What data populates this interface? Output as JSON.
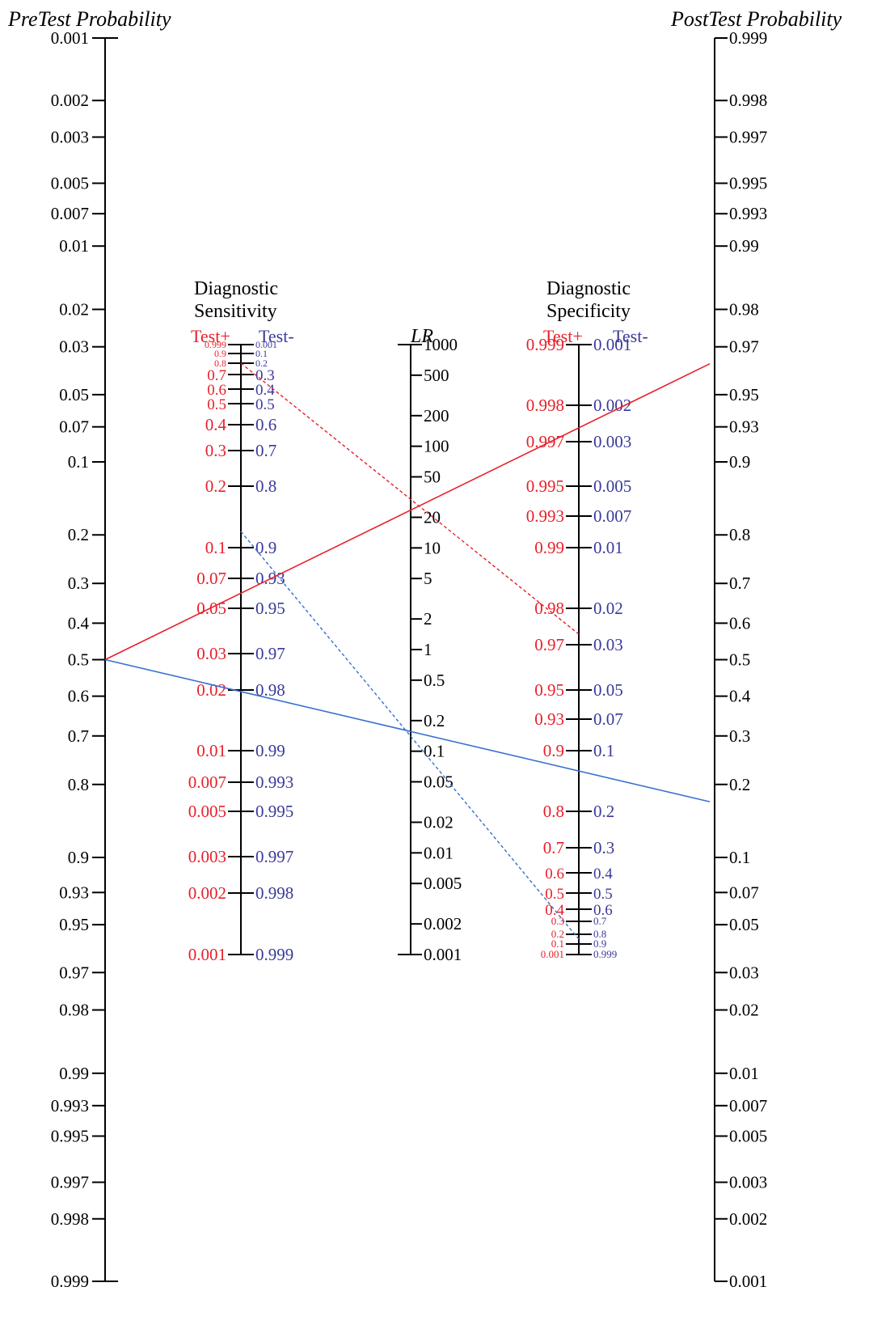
{
  "titles": {
    "pretest": "PreTest Probability",
    "posttest": "PostTest Probability",
    "lr": "LR",
    "sensitivity": [
      "Diagnostic",
      "Sensitivity"
    ],
    "specificity": [
      "Diagnostic",
      "Specificity"
    ],
    "test_pos": "Test+",
    "test_neg": "Test-"
  },
  "colors": {
    "axis": "#000000",
    "red": "#e8202a",
    "blue": "#3a3a9a",
    "line_red": "#e8202a",
    "line_blue": "#3a6fd0"
  },
  "pretest_ticks": [
    "0.001",
    "0.002",
    "0.003",
    "0.005",
    "0.007",
    "0.01",
    "0.02",
    "0.03",
    "0.05",
    "0.07",
    "0.1",
    "0.2",
    "0.3",
    "0.4",
    "0.5",
    "0.6",
    "0.7",
    "0.8",
    "0.9",
    "0.93",
    "0.95",
    "0.97",
    "0.98",
    "0.99",
    "0.993",
    "0.995",
    "0.997",
    "0.998",
    "0.999"
  ],
  "posttest_ticks": [
    "0.999",
    "0.998",
    "0.997",
    "0.995",
    "0.993",
    "0.99",
    "0.98",
    "0.97",
    "0.95",
    "0.93",
    "0.9",
    "0.8",
    "0.7",
    "0.6",
    "0.5",
    "0.4",
    "0.3",
    "0.2",
    "0.1",
    "0.07",
    "0.05",
    "0.03",
    "0.02",
    "0.01",
    "0.007",
    "0.005",
    "0.003",
    "0.002",
    "0.001"
  ],
  "lr_ticks": [
    "1000",
    "500",
    "200",
    "100",
    "50",
    "20",
    "10",
    "5",
    "2",
    "1",
    "0.5",
    "0.2",
    "0.1",
    "0.05",
    "0.02",
    "0.01",
    "0.005",
    "0.002",
    "0.001"
  ],
  "sensitivity_ticks": [
    {
      "pos": "0.999",
      "neg": "0.001"
    },
    {
      "pos": "0.9",
      "neg": "0.1"
    },
    {
      "pos": "0.8",
      "neg": "0.2"
    },
    {
      "pos": "0.7",
      "neg": "0.3"
    },
    {
      "pos": "0.6",
      "neg": "0.4"
    },
    {
      "pos": "0.5",
      "neg": "0.5"
    },
    {
      "pos": "0.4",
      "neg": "0.6"
    },
    {
      "pos": "0.3",
      "neg": "0.7"
    },
    {
      "pos": "0.2",
      "neg": "0.8"
    },
    {
      "pos": "0.1",
      "neg": "0.9"
    },
    {
      "pos": "0.07",
      "neg": "0.93"
    },
    {
      "pos": "0.05",
      "neg": "0.95"
    },
    {
      "pos": "0.03",
      "neg": "0.97"
    },
    {
      "pos": "0.02",
      "neg": "0.98"
    },
    {
      "pos": "0.01",
      "neg": "0.99"
    },
    {
      "pos": "0.007",
      "neg": "0.993"
    },
    {
      "pos": "0.005",
      "neg": "0.995"
    },
    {
      "pos": "0.003",
      "neg": "0.997"
    },
    {
      "pos": "0.002",
      "neg": "0.998"
    },
    {
      "pos": "0.001",
      "neg": "0.999"
    }
  ],
  "specificity_ticks": [
    {
      "pos": "0.999",
      "neg": "0.001"
    },
    {
      "pos": "0.998",
      "neg": "0.002"
    },
    {
      "pos": "0.997",
      "neg": "0.003"
    },
    {
      "pos": "0.995",
      "neg": "0.005"
    },
    {
      "pos": "0.993",
      "neg": "0.007"
    },
    {
      "pos": "0.99",
      "neg": "0.01"
    },
    {
      "pos": "0.98",
      "neg": "0.02"
    },
    {
      "pos": "0.97",
      "neg": "0.03"
    },
    {
      "pos": "0.95",
      "neg": "0.05"
    },
    {
      "pos": "0.93",
      "neg": "0.07"
    },
    {
      "pos": "0.9",
      "neg": "0.1"
    },
    {
      "pos": "0.8",
      "neg": "0.2"
    },
    {
      "pos": "0.7",
      "neg": "0.3"
    },
    {
      "pos": "0.6",
      "neg": "0.4"
    },
    {
      "pos": "0.5",
      "neg": "0.5"
    },
    {
      "pos": "0.4",
      "neg": "0.6"
    },
    {
      "pos": "0.3",
      "neg": "0.7"
    },
    {
      "pos": "0.2",
      "neg": "0.8"
    },
    {
      "pos": "0.1",
      "neg": "0.9"
    },
    {
      "pos": "0.001",
      "neg": "0.999"
    }
  ],
  "example": {
    "pretest": 0.5,
    "sensitivity": 0.8,
    "specificity": 0.97,
    "lr_positive": 26.7,
    "lr_negative": 0.206,
    "posttest_positive": 0.964,
    "posttest_negative": 0.171
  }
}
